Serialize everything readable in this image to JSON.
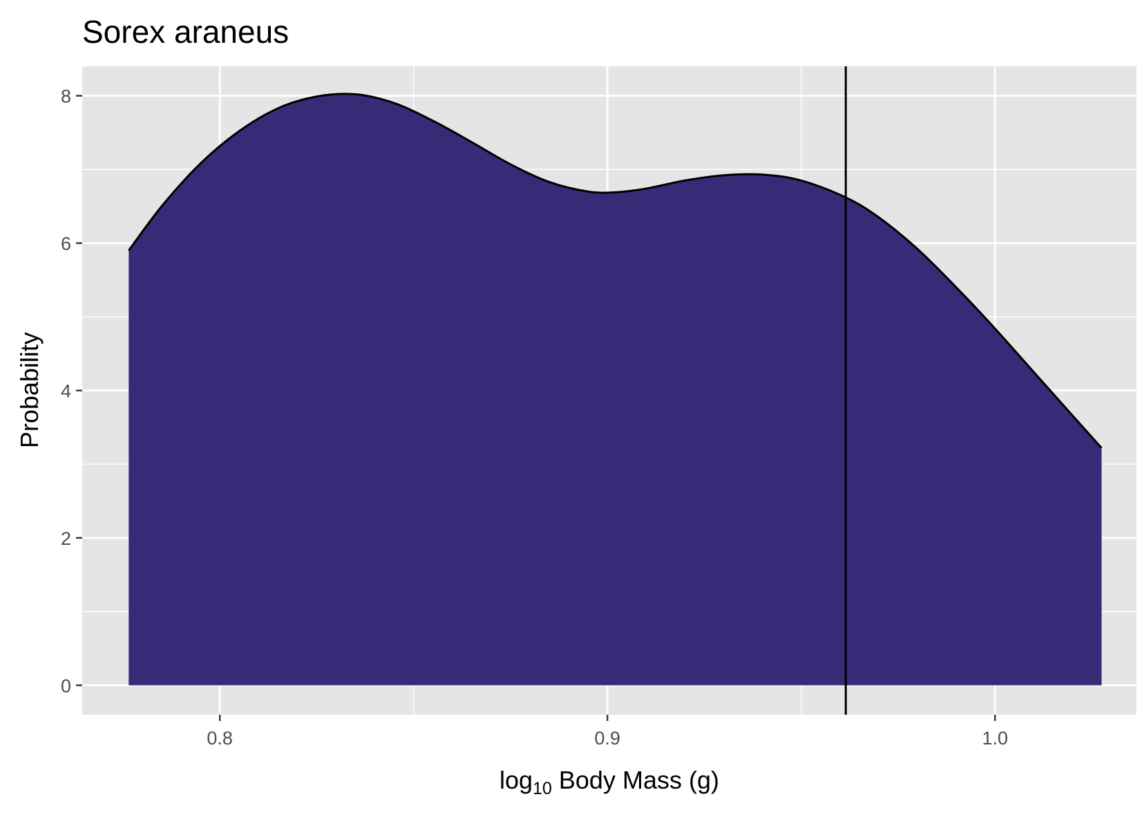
{
  "chart_data": {
    "type": "area",
    "title": "Sorex araneus",
    "xlabel": {
      "prefix": "log",
      "subscript": "10",
      "text": " Body Mass (g)"
    },
    "ylabel": "Probability",
    "xlim": [
      0.7645,
      1.0365
    ],
    "ylim": [
      -0.4,
      8.4
    ],
    "x_ticks": [
      0.8,
      0.9,
      1.0
    ],
    "x_tick_labels": [
      "0.8",
      "0.9",
      "1.0"
    ],
    "x_minor_ticks": [
      0.85,
      0.95
    ],
    "y_ticks": [
      0,
      2,
      4,
      6,
      8
    ],
    "y_tick_labels": [
      "0",
      "2",
      "4",
      "6",
      "8"
    ],
    "y_minor_ticks": [
      1,
      3,
      5,
      7
    ],
    "grid": true,
    "legend": "none",
    "fill_color": "#372b77",
    "line_color": "#000000",
    "panel_color": "#e5e5e5",
    "grid_color": "#ffffff",
    "series": [
      {
        "x": [
          0.7765,
          0.785,
          0.795,
          0.805,
          0.815,
          0.825,
          0.835,
          0.845,
          0.855,
          0.865,
          0.875,
          0.885,
          0.895,
          0.902,
          0.91,
          0.92,
          0.93,
          0.94,
          0.95,
          0.9615,
          0.97,
          0.98,
          0.99,
          1.0,
          1.01,
          1.02,
          1.0275
        ],
        "y": [
          5.9,
          6.5,
          7.08,
          7.52,
          7.83,
          7.99,
          8.02,
          7.9,
          7.66,
          7.37,
          7.07,
          6.83,
          6.7,
          6.69,
          6.74,
          6.85,
          6.92,
          6.93,
          6.85,
          6.62,
          6.35,
          5.92,
          5.4,
          4.84,
          4.25,
          3.66,
          3.22
        ]
      }
    ],
    "vlines": [
      0.9615
    ]
  }
}
